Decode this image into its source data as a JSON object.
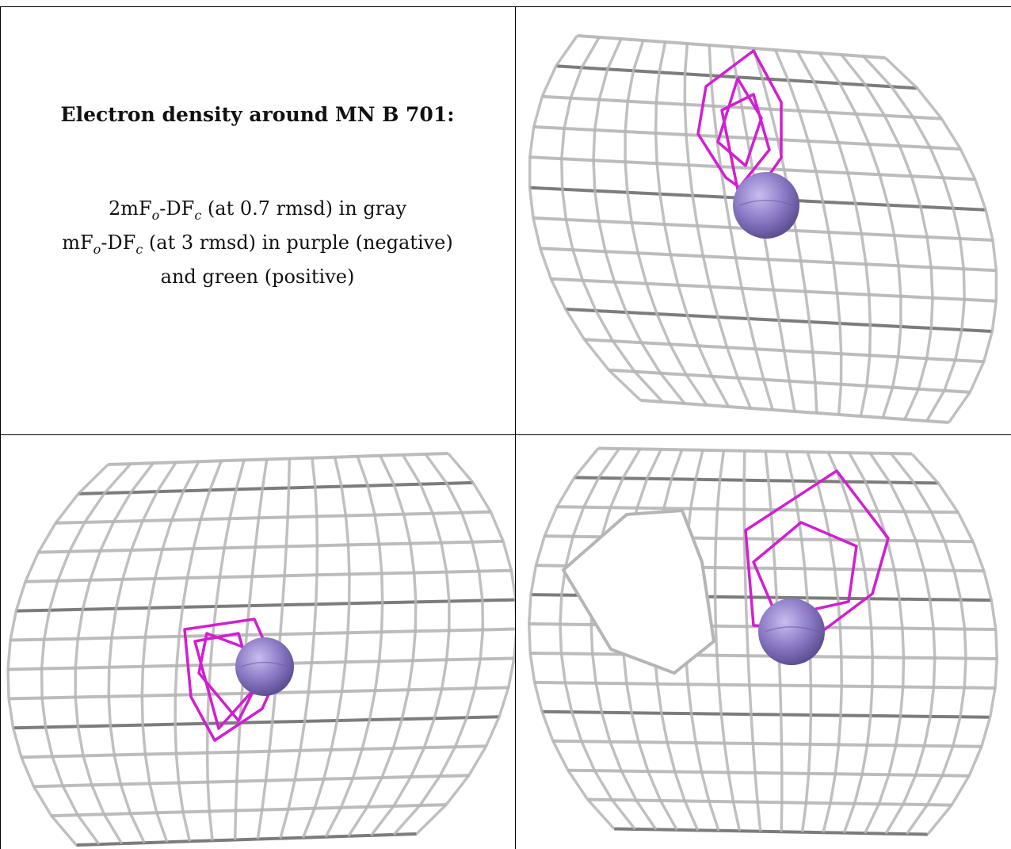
{
  "caption": {
    "title": "Electron density around MN B 701:",
    "line1_prefix": "2mF",
    "line1_sub1": "o",
    "line1_mid": "-DF",
    "line1_sub2": "c",
    "line1_suffix": " (at 0.7 rmsd) in gray",
    "line2_prefix": "mF",
    "line2_sub1": "o",
    "line2_mid": "-DF",
    "line2_sub2": "c",
    "line2_suffix": " (at 3 rmsd) in purple (negative)",
    "line3": "and green (positive)"
  },
  "colors": {
    "mesh_gray": "#b5b5b5",
    "mesh_dark": "#6e6e6e",
    "negative_density": "#d21ed2",
    "atom": "#8f7dc8",
    "border": "#000000"
  },
  "panels": [
    {
      "name": "view-1",
      "atom": "MN"
    },
    {
      "name": "view-2",
      "atom": "MN"
    },
    {
      "name": "view-3",
      "atom": "MN"
    }
  ]
}
